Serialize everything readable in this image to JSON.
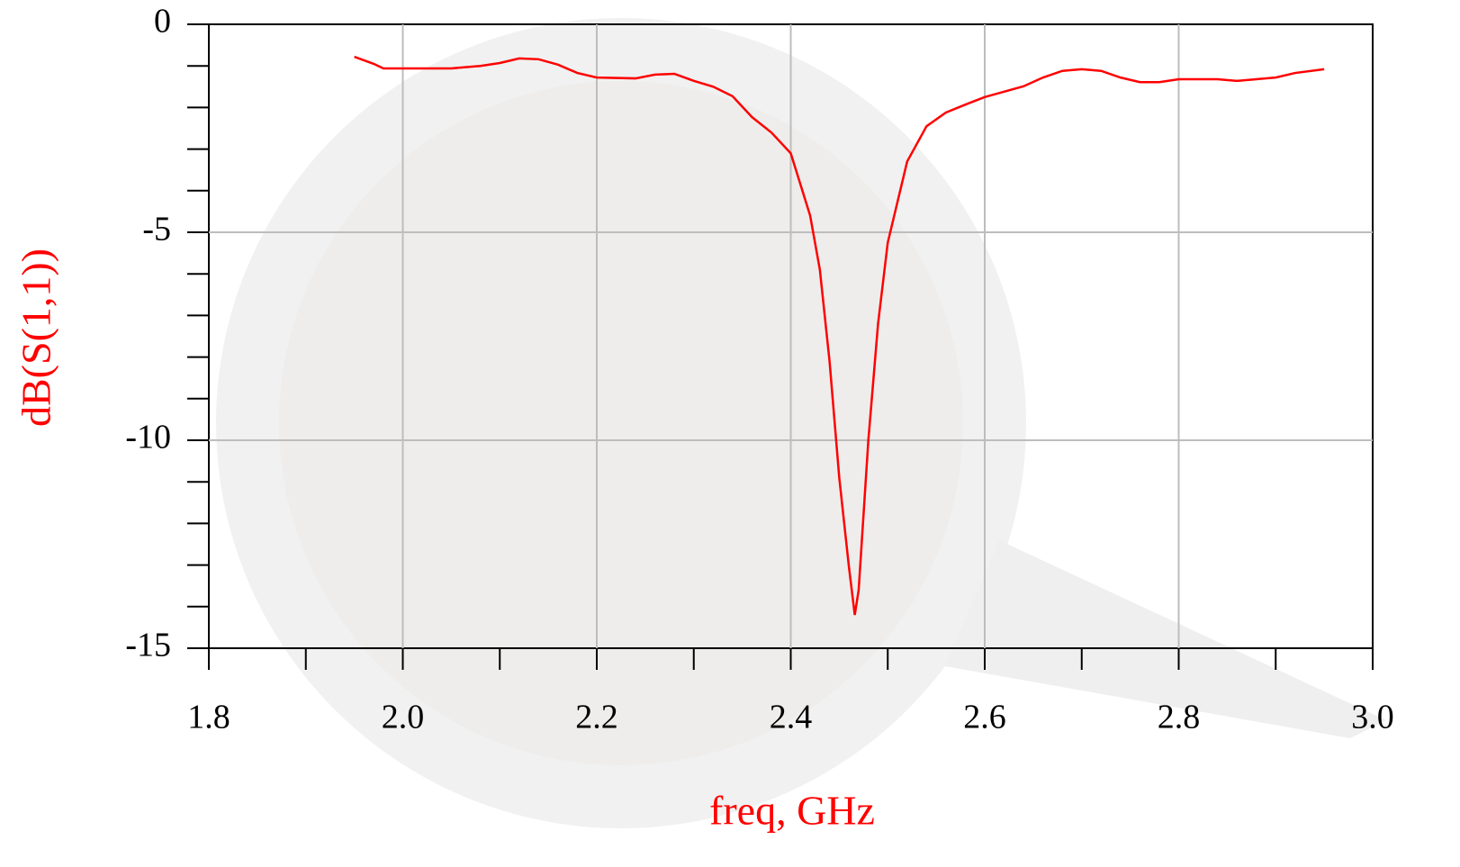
{
  "chart_data": {
    "type": "line",
    "x_label": "freq, GHz",
    "y_label": "dB(S(1,1))",
    "x": [
      1.95,
      1.97,
      1.98,
      2.0,
      2.05,
      2.08,
      2.1,
      2.12,
      2.14,
      2.16,
      2.18,
      2.2,
      2.24,
      2.26,
      2.28,
      2.3,
      2.32,
      2.34,
      2.36,
      2.38,
      2.4,
      2.42,
      2.43,
      2.44,
      2.45,
      2.46,
      2.466,
      2.47,
      2.48,
      2.49,
      2.5,
      2.52,
      2.54,
      2.56,
      2.58,
      2.6,
      2.62,
      2.64,
      2.66,
      2.68,
      2.7,
      2.72,
      2.74,
      2.76,
      2.78,
      2.8,
      2.84,
      2.86,
      2.88,
      2.9,
      2.92,
      2.95
    ],
    "series": [
      {
        "name": "dB(S(1,1))",
        "color": "#ff0000",
        "values": [
          -0.78,
          -0.95,
          -1.06,
          -1.06,
          -1.06,
          -1.0,
          -0.93,
          -0.82,
          -0.84,
          -0.97,
          -1.17,
          -1.28,
          -1.3,
          -1.21,
          -1.19,
          -1.36,
          -1.5,
          -1.73,
          -2.23,
          -2.6,
          -3.1,
          -4.6,
          -5.9,
          -8.1,
          -10.9,
          -13.05,
          -14.2,
          -13.6,
          -10.0,
          -7.2,
          -5.25,
          -3.3,
          -2.45,
          -2.12,
          -1.93,
          -1.75,
          -1.62,
          -1.49,
          -1.28,
          -1.12,
          -1.08,
          -1.12,
          -1.28,
          -1.39,
          -1.39,
          -1.32,
          -1.32,
          -1.36,
          -1.32,
          -1.28,
          -1.17,
          -1.08
        ]
      }
    ],
    "xlim": [
      1.8,
      3.0
    ],
    "ylim": [
      -15,
      0
    ],
    "xticks": [
      1.8,
      {
        "value": 2,
        "label": "2.0"
      },
      2.2,
      2.4,
      2.6,
      2.8,
      {
        "value": 3,
        "label": "3.0"
      }
    ],
    "xminorticks": [
      1.9,
      2.1,
      2.3,
      2.5,
      2.7,
      2.9
    ],
    "yticks": [
      0,
      -5,
      -10,
      -15
    ],
    "yminorticks": [
      -1,
      -2,
      -3,
      -4,
      -6,
      -7,
      -8,
      -9,
      -11,
      -12,
      -13,
      -14
    ],
    "grid": true
  }
}
